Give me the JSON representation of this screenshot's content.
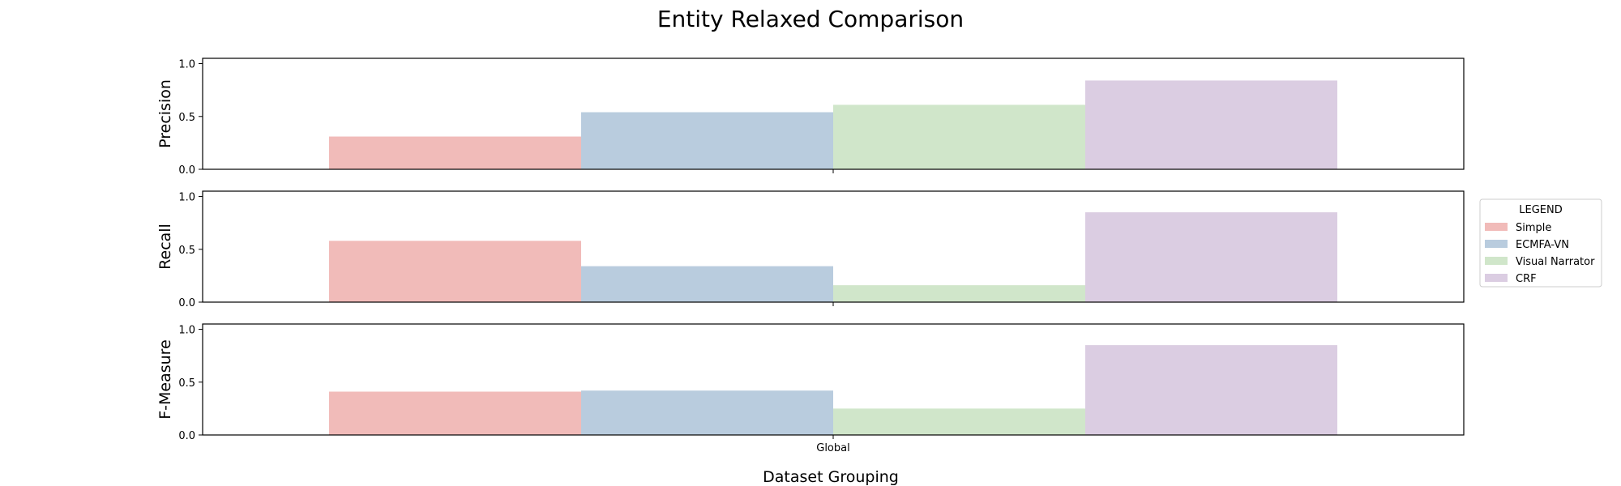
{
  "chart_data": {
    "type": "bar",
    "title": "Entity Relaxed Comparison",
    "xlabel": "Dataset Grouping",
    "categories": [
      "Global"
    ],
    "legend": {
      "title": "LEGEND",
      "placement": "right",
      "entries": [
        "Simple",
        "ECMFA-VN",
        "Visual Narrator",
        "CRF"
      ]
    },
    "series_colors": [
      "#f1bbb9",
      "#b9ccde",
      "#d0e6ca",
      "#dbcde2"
    ],
    "yticks": [
      "0.0",
      "0.5",
      "1.0"
    ],
    "ylim": [
      0,
      1.05
    ],
    "grid": false,
    "panels": [
      {
        "ylabel": "Precision",
        "series": [
          {
            "name": "Simple",
            "values": [
              0.31
            ]
          },
          {
            "name": "ECMFA-VN",
            "values": [
              0.54
            ]
          },
          {
            "name": "Visual Narrator",
            "values": [
              0.61
            ]
          },
          {
            "name": "CRF",
            "values": [
              0.84
            ]
          }
        ]
      },
      {
        "ylabel": "Recall",
        "series": [
          {
            "name": "Simple",
            "values": [
              0.58
            ]
          },
          {
            "name": "ECMFA-VN",
            "values": [
              0.34
            ]
          },
          {
            "name": "Visual Narrator",
            "values": [
              0.16
            ]
          },
          {
            "name": "CRF",
            "values": [
              0.85
            ]
          }
        ]
      },
      {
        "ylabel": "F-Measure",
        "series": [
          {
            "name": "Simple",
            "values": [
              0.41
            ]
          },
          {
            "name": "ECMFA-VN",
            "values": [
              0.42
            ]
          },
          {
            "name": "Visual Narrator",
            "values": [
              0.25
            ]
          },
          {
            "name": "CRF",
            "values": [
              0.85
            ]
          }
        ]
      }
    ]
  }
}
